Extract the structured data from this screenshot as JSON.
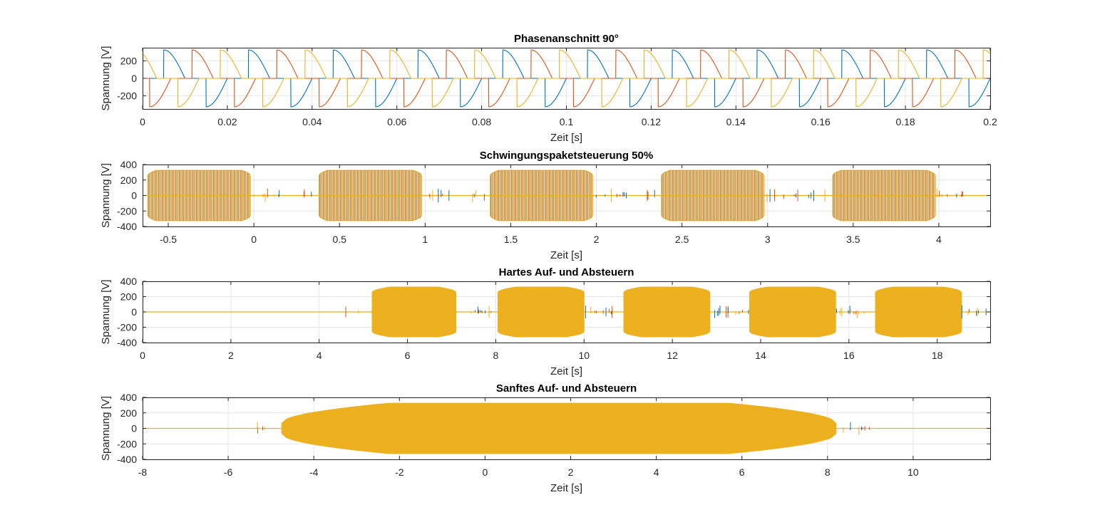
{
  "chart_data": [
    {
      "type": "line",
      "title": "Phasenanschnitt 90°",
      "xlabel": "Zeit [s]",
      "ylabel": "Spannung [V]",
      "xlim": [
        0,
        0.2
      ],
      "ylim": [
        -350,
        350
      ],
      "xticks": [
        0,
        0.02,
        0.04,
        0.06,
        0.08,
        0.1,
        0.12,
        0.14,
        0.16,
        0.18,
        0.2
      ],
      "xticklabels": [
        "0",
        "0.02",
        "0.04",
        "0.06",
        "0.08",
        "0.1",
        "0.12",
        "0.14",
        "0.16",
        "0.18",
        "0.2"
      ],
      "yticks": [
        -200,
        0,
        200
      ],
      "yticklabels": [
        "-200",
        "0",
        "200"
      ],
      "grid": true,
      "signal": {
        "kind": "phase_cut",
        "frequency_hz": 50,
        "amplitude": 325,
        "firing_angle_deg": 90
      },
      "series": [
        {
          "color": "#0072BD",
          "phase_deg": 0
        },
        {
          "color": "#D95319",
          "phase_deg": -120
        },
        {
          "color": "#EDB120",
          "phase_deg": 120
        }
      ]
    },
    {
      "type": "line",
      "title": "Schwingungspaketsteuerung 50%",
      "xlabel": "Zeit [s]",
      "ylabel": "Spannung [V]",
      "xlim": [
        -0.65,
        4.3
      ],
      "ylim": [
        -400,
        400
      ],
      "xticks": [
        -0.5,
        0,
        0.5,
        1,
        1.5,
        2,
        2.5,
        3,
        3.5,
        4
      ],
      "xticklabels": [
        "-0.5",
        "0",
        "0.5",
        "1",
        "1.5",
        "2",
        "2.5",
        "3",
        "3.5",
        "4"
      ],
      "yticks": [
        -400,
        -200,
        0,
        200,
        400
      ],
      "yticklabels": [
        "-400",
        "-200",
        "0",
        "200",
        "400"
      ],
      "grid": true,
      "signal": {
        "kind": "burst",
        "amplitude": 325,
        "bursts": [
          [
            -0.62,
            -0.02
          ],
          [
            0.38,
            0.98
          ],
          [
            1.38,
            1.98
          ],
          [
            2.38,
            2.98
          ],
          [
            3.38,
            3.98
          ]
        ],
        "ramp": 0.05,
        "fill_color": "#F2C57A"
      },
      "series": [
        {
          "color": "#0072BD"
        },
        {
          "color": "#D95319"
        },
        {
          "color": "#EDB120"
        }
      ]
    },
    {
      "type": "line",
      "title": "Hartes Auf- und Absteuern",
      "xlabel": "Zeit [s]",
      "ylabel": "Spannung [V]",
      "xlim": [
        0,
        19.2
      ],
      "ylim": [
        -400,
        400
      ],
      "xticks": [
        0,
        2,
        4,
        6,
        8,
        10,
        12,
        14,
        16,
        18
      ],
      "xticklabels": [
        "0",
        "2",
        "4",
        "6",
        "8",
        "10",
        "12",
        "14",
        "16",
        "18"
      ],
      "yticks": [
        -400,
        -200,
        0,
        200,
        400
      ],
      "yticklabels": [
        "-400",
        "-200",
        "0",
        "200",
        "400"
      ],
      "grid": true,
      "signal": {
        "kind": "burst",
        "amplitude": 325,
        "bursts": [
          [
            5.2,
            7.1
          ],
          [
            8.05,
            10.0
          ],
          [
            10.9,
            12.85
          ],
          [
            13.75,
            15.7
          ],
          [
            16.6,
            18.55
          ]
        ],
        "ramp": 0.4,
        "fill_color": "#EDB120"
      },
      "series": [
        {
          "color": "#0072BD"
        },
        {
          "color": "#D95319"
        },
        {
          "color": "#EDB120"
        }
      ]
    },
    {
      "type": "line",
      "title": "Sanftes Auf- und Absteuern",
      "xlabel": "Zeit [s]",
      "ylabel": "Spannung [V]",
      "xlim": [
        -8,
        11.8
      ],
      "ylim": [
        -400,
        400
      ],
      "xticks": [
        -8,
        -6,
        -4,
        -2,
        0,
        2,
        4,
        6,
        8,
        10
      ],
      "xticklabels": [
        "-8",
        "-6",
        "-4",
        "-2",
        "0",
        "2",
        "4",
        "6",
        "8",
        "10"
      ],
      "yticks": [
        -400,
        -200,
        0,
        200,
        400
      ],
      "yticklabels": [
        "-400",
        "-200",
        "0",
        "200",
        "400"
      ],
      "grid": true,
      "signal": {
        "kind": "burst",
        "amplitude": 325,
        "bursts": [
          [
            -4.75,
            8.2
          ]
        ],
        "ramp": 2.5,
        "edge_min": 0.2,
        "fill_color": "#EDB120"
      },
      "series": [
        {
          "color": "#0072BD"
        },
        {
          "color": "#D95319"
        },
        {
          "color": "#EDB120"
        }
      ]
    }
  ]
}
